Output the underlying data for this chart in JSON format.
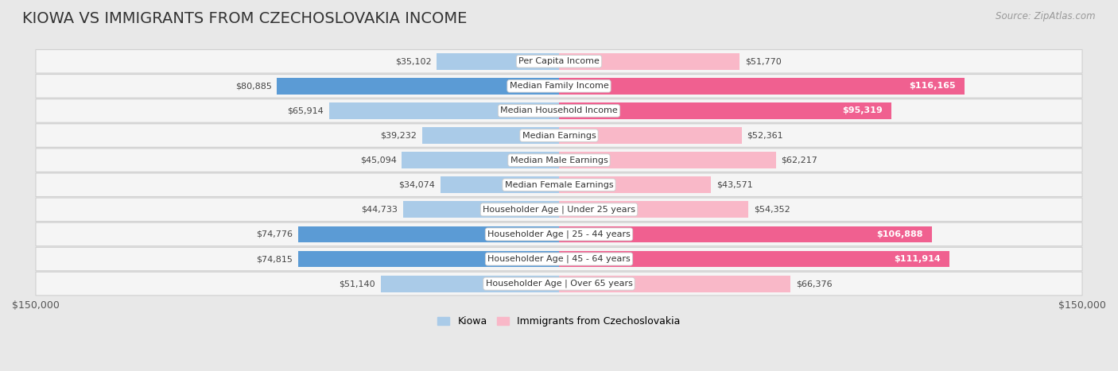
{
  "title": "KIOWA VS IMMIGRANTS FROM CZECHOSLOVAKIA INCOME",
  "source": "Source: ZipAtlas.com",
  "categories": [
    "Per Capita Income",
    "Median Family Income",
    "Median Household Income",
    "Median Earnings",
    "Median Male Earnings",
    "Median Female Earnings",
    "Householder Age | Under 25 years",
    "Householder Age | 25 - 44 years",
    "Householder Age | 45 - 64 years",
    "Householder Age | Over 65 years"
  ],
  "kiowa_values": [
    35102,
    80885,
    65914,
    39232,
    45094,
    34074,
    44733,
    74776,
    74815,
    51140
  ],
  "immig_values": [
    51770,
    116165,
    95319,
    52361,
    62217,
    43571,
    54352,
    106888,
    111914,
    66376
  ],
  "kiowa_color_light": "#aacbe8",
  "kiowa_color_dark": "#5b9bd5",
  "immig_color_light": "#f9b8c8",
  "immig_color_dark": "#f06090",
  "kiowa_label": "Kiowa",
  "immig_label": "Immigrants from Czechoslovakia",
  "max_val": 150000,
  "bg_color": "#e8e8e8",
  "row_bg": "#f5f5f5",
  "row_border": "#d0d0d0",
  "label_box_color": "#ffffff",
  "label_box_edge": "#cccccc",
  "axis_label_left": "$150,000",
  "axis_label_right": "$150,000",
  "title_fontsize": 14,
  "source_fontsize": 8.5,
  "bar_label_fontsize": 8,
  "category_fontsize": 8,
  "legend_fontsize": 9,
  "axis_tick_fontsize": 9,
  "inside_label_threshold": 90000
}
